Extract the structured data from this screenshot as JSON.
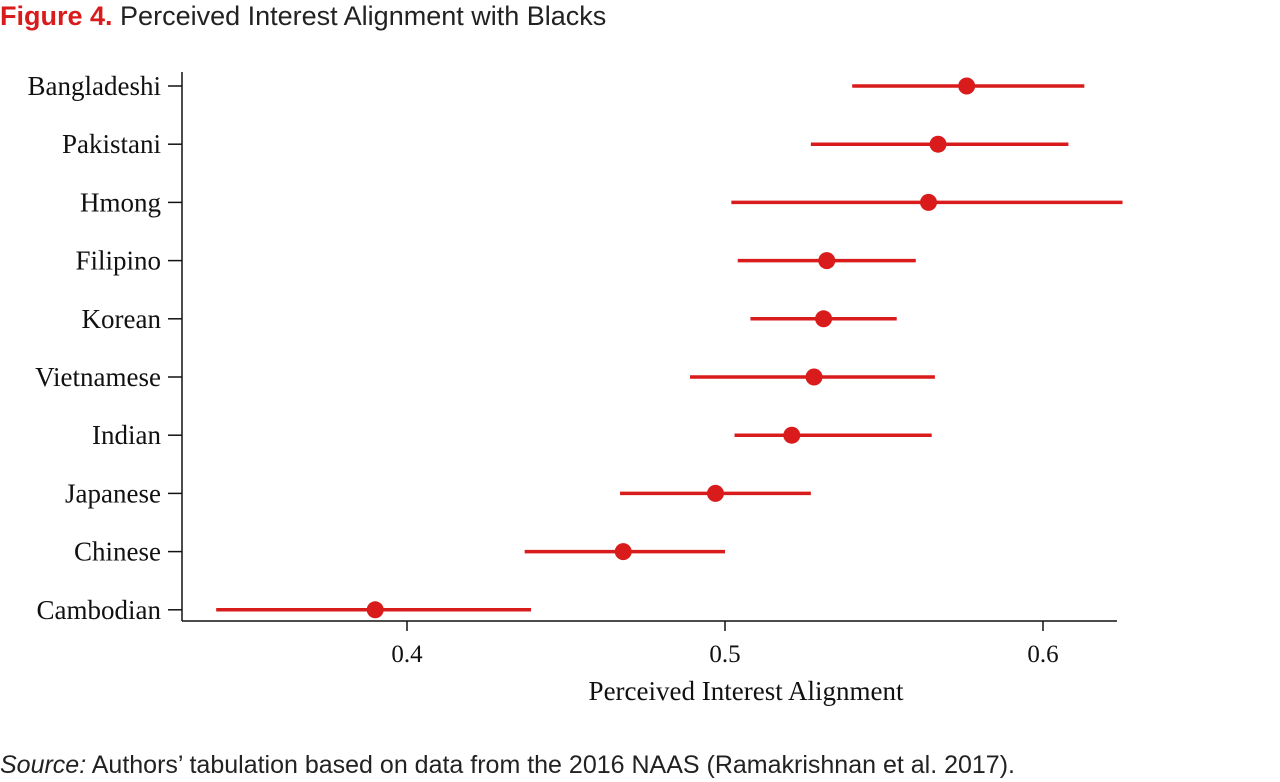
{
  "figure": {
    "number_label": "Figure 4.",
    "title": "Perceived Interest Alignment with Blacks"
  },
  "source": {
    "label": "Source:",
    "text": "Authors’ tabulation based on data from the 2016 NAAS (Ramakrishnan et al. 2017)."
  },
  "colors": {
    "accent": "#d91b1b",
    "text": "#222222"
  },
  "chart_data": {
    "type": "scatter",
    "title": "Perceived Interest Alignment with Blacks",
    "xlabel": "Perceived Interest Alignment",
    "ylabel": "",
    "xlim": [
      0.327,
      0.625
    ],
    "xticks": [
      0.4,
      0.5,
      0.6
    ],
    "xtick_labels": [
      "0.4",
      "0.5",
      "0.6"
    ],
    "grid": false,
    "legend": "none",
    "categories": [
      "Bangladeshi",
      "Pakistani",
      "Hmong",
      "Filipino",
      "Korean",
      "Vietnamese",
      "Indian",
      "Japanese",
      "Chinese",
      "Cambodian"
    ],
    "estimates": [
      0.576,
      0.567,
      0.564,
      0.532,
      0.531,
      0.528,
      0.521,
      0.497,
      0.468,
      0.39
    ],
    "ci_low": [
      0.54,
      0.527,
      0.502,
      0.504,
      0.508,
      0.489,
      0.503,
      0.467,
      0.437,
      0.34
    ],
    "ci_high": [
      0.613,
      0.608,
      0.625,
      0.56,
      0.554,
      0.566,
      0.565,
      0.527,
      0.5,
      0.439
    ]
  }
}
